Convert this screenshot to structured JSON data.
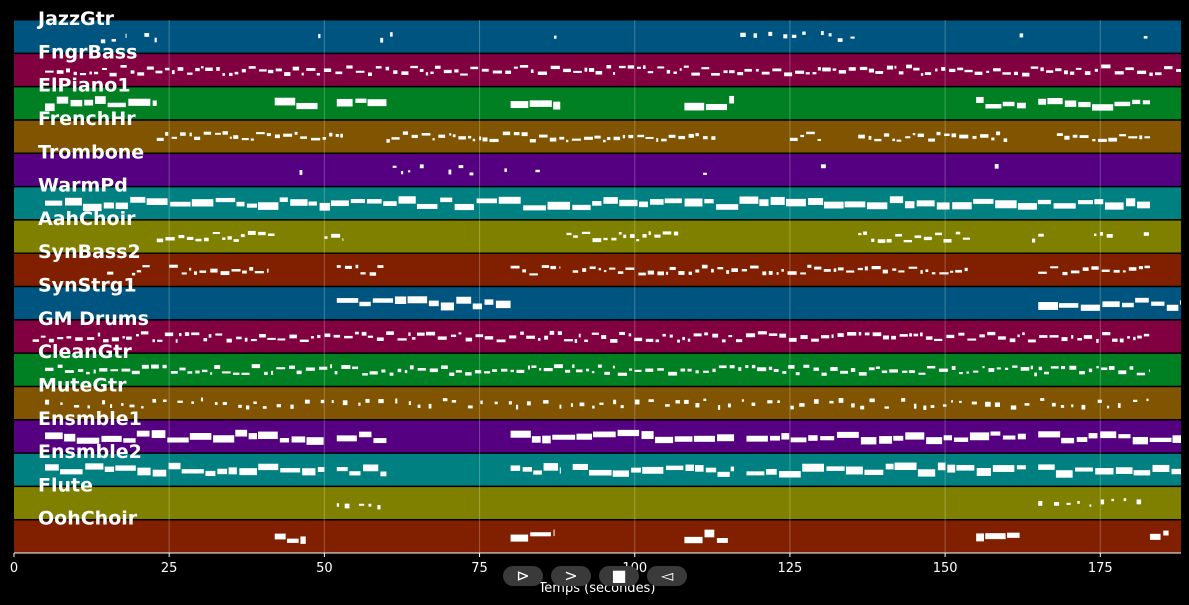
{
  "chart_data": {
    "type": "piano-roll",
    "xlabel": "Temps (secondes)",
    "xlim": [
      0,
      188
    ],
    "xticks": [
      0,
      25,
      50,
      75,
      100,
      125,
      150,
      175
    ],
    "grid": "vertical",
    "tracks": [
      {
        "name": "JazzGtr",
        "color": "#005480",
        "segments": [
          [
            14,
            18
          ],
          [
            21,
            23
          ],
          [
            49,
            50
          ],
          [
            59,
            61
          ],
          [
            87,
            88
          ],
          [
            117,
            128
          ],
          [
            130,
            137
          ],
          [
            162,
            163
          ],
          [
            182,
            183
          ]
        ],
        "density": "sparse"
      },
      {
        "name": "FngrBass",
        "color": "#800040",
        "segments": [
          [
            5,
            188
          ]
        ],
        "density": "medium"
      },
      {
        "name": "ElPiano1",
        "color": "#008022",
        "segments": [
          [
            5,
            23
          ],
          [
            42,
            49
          ],
          [
            52,
            60
          ],
          [
            80,
            88
          ],
          [
            108,
            116
          ],
          [
            155,
            163
          ],
          [
            165,
            183
          ]
        ],
        "density": "block"
      },
      {
        "name": "FrenchHr",
        "color": "#805400",
        "segments": [
          [
            23,
            53
          ],
          [
            60,
            113
          ],
          [
            125,
            130
          ],
          [
            136,
            160
          ],
          [
            168,
            183
          ]
        ],
        "density": "medium"
      },
      {
        "name": "Trombone",
        "color": "#540080",
        "segments": [
          [
            46,
            47
          ],
          [
            61,
            66
          ],
          [
            70,
            75
          ],
          [
            79,
            80
          ],
          [
            84,
            85
          ],
          [
            111,
            112
          ],
          [
            130,
            131
          ],
          [
            158,
            159
          ]
        ],
        "density": "sparse"
      },
      {
        "name": "WarmPd",
        "color": "#008080",
        "segments": [
          [
            5,
            183
          ]
        ],
        "density": "block"
      },
      {
        "name": "AahChoir",
        "color": "#808000",
        "segments": [
          [
            23,
            42
          ],
          [
            50,
            53
          ],
          [
            89,
            107
          ],
          [
            136,
            154
          ],
          [
            164,
            166
          ],
          [
            174,
            177
          ],
          [
            182,
            183
          ]
        ],
        "density": "medium"
      },
      {
        "name": "SynBass2",
        "color": "#802000",
        "segments": [
          [
            15,
            16
          ],
          [
            19,
            22
          ],
          [
            25,
            41
          ],
          [
            52,
            60
          ],
          [
            80,
            88
          ],
          [
            90,
            154
          ],
          [
            165,
            183
          ]
        ],
        "density": "medium"
      },
      {
        "name": "SynStrg1",
        "color": "#005480",
        "segments": [
          [
            52,
            80
          ],
          [
            165,
            188
          ]
        ],
        "density": "block"
      },
      {
        "name": "GM Drums",
        "color": "#800040",
        "segments": [
          [
            3,
            183
          ]
        ],
        "density": "medium"
      },
      {
        "name": "CleanGtr",
        "color": "#008022",
        "segments": [
          [
            5,
            183
          ]
        ],
        "density": "medium"
      },
      {
        "name": "MuteGtr",
        "color": "#805400",
        "segments": [
          [
            5,
            183
          ]
        ],
        "density": "sparse"
      },
      {
        "name": "Ensmble1",
        "color": "#540080",
        "segments": [
          [
            5,
            50
          ],
          [
            52,
            60
          ],
          [
            80,
            116
          ],
          [
            118,
            163
          ],
          [
            165,
            188
          ]
        ],
        "density": "block"
      },
      {
        "name": "Ensmble2",
        "color": "#008080",
        "segments": [
          [
            5,
            50
          ],
          [
            52,
            60
          ],
          [
            80,
            88
          ],
          [
            90,
            116
          ],
          [
            118,
            163
          ],
          [
            165,
            188
          ]
        ],
        "density": "block"
      },
      {
        "name": "Flute",
        "color": "#808000",
        "segments": [
          [
            52,
            60
          ],
          [
            165,
            183
          ]
        ],
        "density": "sparse"
      },
      {
        "name": "OohChoir",
        "color": "#802000",
        "segments": [
          [
            42,
            47
          ],
          [
            80,
            87
          ],
          [
            108,
            115
          ],
          [
            155,
            162
          ],
          [
            183,
            186
          ]
        ],
        "density": "block"
      }
    ]
  },
  "controls": {
    "play_glyph": "⊳",
    "next_glyph": ">",
    "stop_glyph": "■",
    "prev_glyph": "◅"
  }
}
